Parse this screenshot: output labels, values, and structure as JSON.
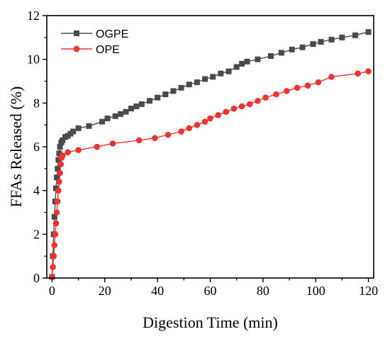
{
  "chart_data": {
    "type": "line",
    "title": "",
    "xlabel": "Digestion Time (min)",
    "ylabel": "FFAs Released (%)",
    "xlim": [
      -2,
      122
    ],
    "ylim": [
      0,
      12
    ],
    "xticks": [
      0,
      20,
      40,
      60,
      80,
      100,
      120
    ],
    "yticks": [
      0,
      2,
      4,
      6,
      8,
      10,
      12
    ],
    "xtick_labels": [
      "0",
      "20",
      "40",
      "60",
      "80",
      "100",
      "120"
    ],
    "ytick_labels": [
      "0",
      "2",
      "4",
      "6",
      "8",
      "10",
      "12"
    ],
    "grid": false,
    "legend_position": "top-left",
    "series": [
      {
        "name": "OGPE",
        "color": "#4a4a4a",
        "marker": "square",
        "x": [
          0,
          0.3,
          0.6,
          0.9,
          1.2,
          1.5,
          1.8,
          2.1,
          2.4,
          2.7,
          3.0,
          3.5,
          4.0,
          5,
          6,
          7,
          8,
          10,
          14,
          19,
          21,
          24,
          26,
          28,
          30,
          32,
          34,
          37,
          40,
          43,
          46,
          49,
          52,
          55,
          58,
          61,
          64,
          67,
          70,
          72,
          74,
          78,
          83,
          87,
          91,
          95,
          99,
          102,
          106,
          110,
          115,
          120
        ],
        "y": [
          0.05,
          1.0,
          2.0,
          2.8,
          3.5,
          4.1,
          4.6,
          5.0,
          5.4,
          5.7,
          6.0,
          6.2,
          6.3,
          6.45,
          6.5,
          6.6,
          6.7,
          6.85,
          6.95,
          7.15,
          7.3,
          7.4,
          7.5,
          7.6,
          7.75,
          7.85,
          7.95,
          8.1,
          8.25,
          8.4,
          8.55,
          8.7,
          8.85,
          8.95,
          9.1,
          9.2,
          9.35,
          9.45,
          9.65,
          9.8,
          9.9,
          10.0,
          10.15,
          10.3,
          10.45,
          10.55,
          10.7,
          10.8,
          10.9,
          11.0,
          11.1,
          11.25
        ]
      },
      {
        "name": "OPE",
        "color": "#ee3333",
        "marker": "circle",
        "x": [
          0,
          0.3,
          0.6,
          0.9,
          1.2,
          1.5,
          1.8,
          2.1,
          2.4,
          2.7,
          3.0,
          3.3,
          3.6,
          4.0,
          6,
          10,
          17,
          23,
          33,
          39,
          44,
          49,
          52,
          55,
          58,
          60,
          63,
          66,
          69,
          72,
          75,
          78,
          81,
          85,
          89,
          93,
          97,
          101,
          106,
          116,
          120
        ],
        "y": [
          0.05,
          0.5,
          1.0,
          1.5,
          2.0,
          2.5,
          3.0,
          3.5,
          4.0,
          4.4,
          4.8,
          5.2,
          5.5,
          5.6,
          5.75,
          5.85,
          6.0,
          6.15,
          6.3,
          6.4,
          6.55,
          6.7,
          6.85,
          7.0,
          7.15,
          7.3,
          7.45,
          7.6,
          7.75,
          7.85,
          7.95,
          8.1,
          8.25,
          8.4,
          8.55,
          8.7,
          8.8,
          8.95,
          9.2,
          9.35,
          9.45
        ]
      }
    ]
  }
}
